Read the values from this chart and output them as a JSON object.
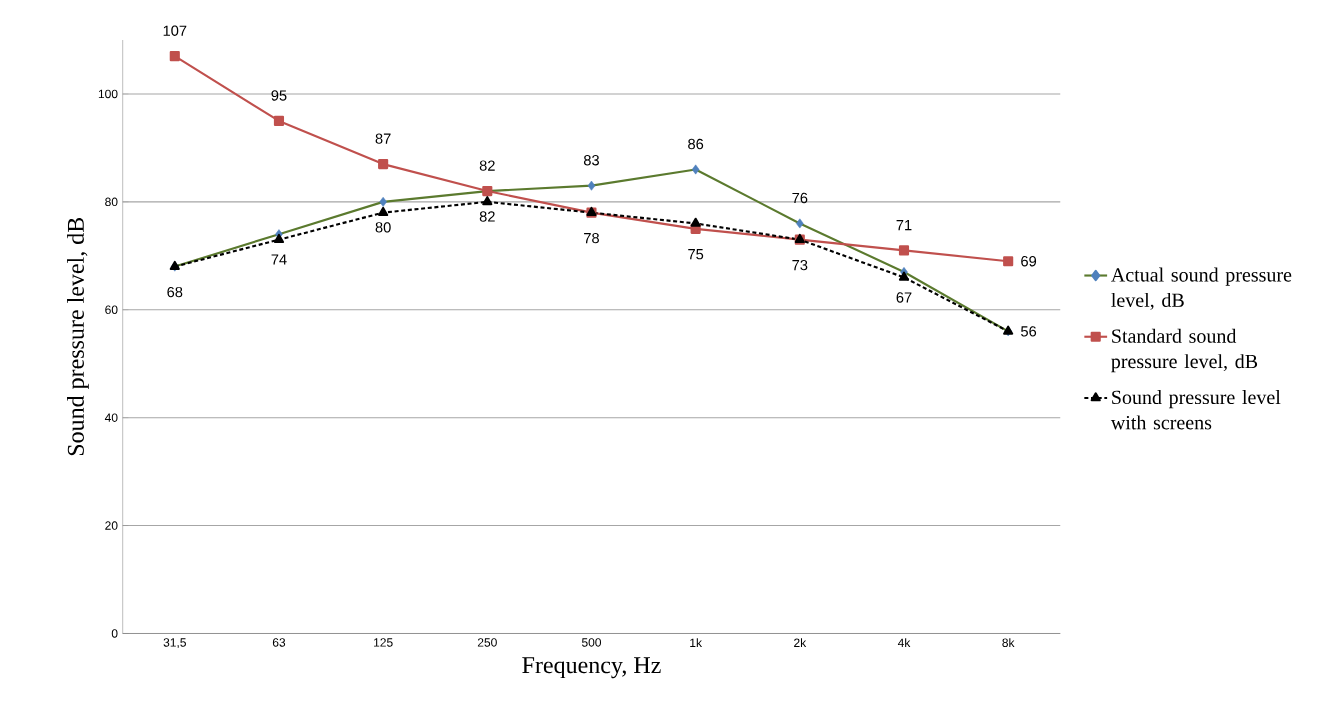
{
  "chart_data": {
    "type": "line",
    "xlabel": "Frequency, Hz",
    "ylabel": "Sound pressure level, dB",
    "categories": [
      "31,5",
      "63",
      "125",
      "250",
      "500",
      "1k",
      "2k",
      "4k",
      "8k"
    ],
    "ylim": [
      0,
      110
    ],
    "yticks": [
      0,
      20,
      40,
      60,
      80,
      100
    ],
    "grid": "y",
    "legend": "right",
    "series": [
      {
        "name": "Actual sound pressure level, dB",
        "color": "#5b7a2e",
        "colors": [
          "#4f81bd",
          "#4f81bd",
          "#4f81bd",
          "#4f81bd",
          "#4f81bd",
          "#4f81bd",
          "#4f81bd",
          "#4f81bd",
          "#4f81bd"
        ],
        "marker": "diamond",
        "line_style": "solid",
        "values": [
          68,
          74,
          80,
          82,
          83,
          86,
          76,
          67,
          56
        ],
        "value_labels": [
          "68",
          "74",
          "80",
          "82",
          "83",
          "86",
          "76",
          "67",
          "56"
        ]
      },
      {
        "name": "Standard sound pressure level, dB",
        "color": "#c0504d",
        "marker": "square",
        "line_style": "solid",
        "values": [
          107,
          95,
          87,
          82,
          78,
          75,
          73,
          71,
          69
        ],
        "value_labels": [
          "107",
          "95",
          "87",
          "82",
          "78",
          "75",
          "73",
          "71",
          "69"
        ]
      },
      {
        "name": "Sound pressure level with screens",
        "color": "#000000",
        "marker": "triangle",
        "line_style": "dashed",
        "values": [
          68,
          73,
          78,
          80,
          78,
          76,
          73,
          66,
          56
        ]
      }
    ]
  }
}
